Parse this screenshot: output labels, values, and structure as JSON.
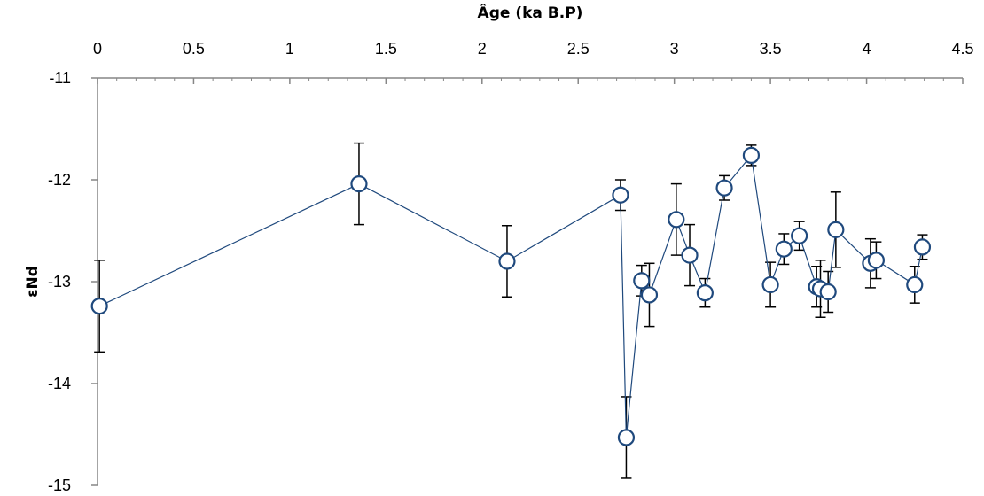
{
  "chart_data": {
    "type": "scatter",
    "title": "",
    "xlabel": "Âge (ka B.P)",
    "ylabel": "εNd",
    "xlim": [
      0,
      4.5
    ],
    "ylim": [
      -15,
      -11
    ],
    "x_axis_position": "top",
    "y_axis_reversed": true,
    "grid": false,
    "legend": "none",
    "x_ticks": [
      "0",
      "0.5",
      "1",
      "1.5",
      "2",
      "2.5",
      "3",
      "3.5",
      "4",
      "4.5"
    ],
    "y_ticks": [
      "-11",
      "-12",
      "-13",
      "-14",
      "-15"
    ],
    "line_color": "#1f497d",
    "marker_edge_color": "#1f497d",
    "marker_fill_color": "#ffffff",
    "errorbar_color": "#000000",
    "series": [
      {
        "points": [
          {
            "x": 0.01,
            "y": -13.24,
            "y_err_low": 0.45,
            "y_err_high": 0.45
          },
          {
            "x": 1.36,
            "y": -12.04,
            "y_err_low": 0.4,
            "y_err_high": 0.4
          },
          {
            "x": 2.13,
            "y": -12.8,
            "y_err_low": 0.35,
            "y_err_high": 0.35
          },
          {
            "x": 2.72,
            "y": -12.15,
            "y_err_low": 0.15,
            "y_err_high": 0.15
          },
          {
            "x": 2.75,
            "y": -14.53,
            "y_err_low": 0.4,
            "y_err_high": 0.4
          },
          {
            "x": 2.83,
            "y": -12.99,
            "y_err_low": 0.15,
            "y_err_high": 0.15
          },
          {
            "x": 2.87,
            "y": -13.13,
            "y_err_low": 0.31,
            "y_err_high": 0.31
          },
          {
            "x": 3.01,
            "y": -12.39,
            "y_err_low": 0.35,
            "y_err_high": 0.35
          },
          {
            "x": 3.08,
            "y": -12.74,
            "y_err_low": 0.3,
            "y_err_high": 0.3
          },
          {
            "x": 3.16,
            "y": -13.11,
            "y_err_low": 0.14,
            "y_err_high": 0.14
          },
          {
            "x": 3.26,
            "y": -12.08,
            "y_err_low": 0.12,
            "y_err_high": 0.12
          },
          {
            "x": 3.4,
            "y": -11.76,
            "y_err_low": 0.1,
            "y_err_high": 0.1
          },
          {
            "x": 3.5,
            "y": -13.03,
            "y_err_low": 0.22,
            "y_err_high": 0.22
          },
          {
            "x": 3.57,
            "y": -12.68,
            "y_err_low": 0.15,
            "y_err_high": 0.15
          },
          {
            "x": 3.65,
            "y": -12.55,
            "y_err_low": 0.14,
            "y_err_high": 0.14
          },
          {
            "x": 3.74,
            "y": -13.05,
            "y_err_low": 0.2,
            "y_err_high": 0.2
          },
          {
            "x": 3.76,
            "y": -13.07,
            "y_err_low": 0.28,
            "y_err_high": 0.28
          },
          {
            "x": 3.8,
            "y": -13.1,
            "y_err_low": 0.2,
            "y_err_high": 0.2
          },
          {
            "x": 3.84,
            "y": -12.49,
            "y_err_low": 0.37,
            "y_err_high": 0.37
          },
          {
            "x": 4.02,
            "y": -12.82,
            "y_err_low": 0.24,
            "y_err_high": 0.24
          },
          {
            "x": 4.05,
            "y": -12.79,
            "y_err_low": 0.18,
            "y_err_high": 0.18
          },
          {
            "x": 4.25,
            "y": -13.03,
            "y_err_low": 0.18,
            "y_err_high": 0.18
          },
          {
            "x": 4.29,
            "y": -12.66,
            "y_err_low": 0.12,
            "y_err_high": 0.12
          }
        ]
      }
    ]
  }
}
